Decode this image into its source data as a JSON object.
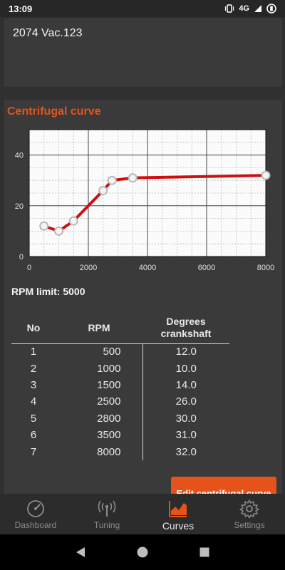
{
  "status_bar": {
    "time": "13:09",
    "network": "4G"
  },
  "header_card": {
    "vacuum_label": "2074 Vac.123"
  },
  "curve_card": {
    "title": "Centrifugal curve",
    "rpm_limit": "RPM limit: 5000"
  },
  "table": {
    "headers": {
      "no": "No",
      "rpm": "RPM",
      "degrees_line1": "Degrees",
      "degrees_line2": "crankshaft"
    },
    "rows": [
      {
        "no": "1",
        "rpm": "500",
        "deg": "12.0"
      },
      {
        "no": "2",
        "rpm": "1000",
        "deg": "10.0"
      },
      {
        "no": "3",
        "rpm": "1500",
        "deg": "14.0"
      },
      {
        "no": "4",
        "rpm": "2500",
        "deg": "26.0"
      },
      {
        "no": "5",
        "rpm": "2800",
        "deg": "30.0"
      },
      {
        "no": "6",
        "rpm": "3500",
        "deg": "31.0"
      },
      {
        "no": "7",
        "rpm": "8000",
        "deg": "32.0"
      }
    ]
  },
  "edit_button": {
    "label": "Edit centrifugal curve"
  },
  "nav": {
    "items": [
      {
        "label": "Dashboard",
        "icon": "gauge-icon"
      },
      {
        "label": "Tuning",
        "icon": "tuning-icon"
      },
      {
        "label": "Curves",
        "icon": "curves-icon"
      },
      {
        "label": "Settings",
        "icon": "gear-icon"
      }
    ],
    "active": "Curves"
  },
  "colors": {
    "accent": "#e5531a",
    "line": "#cc1010"
  },
  "chart_data": {
    "type": "line",
    "title": "",
    "xlabel": "",
    "ylabel": "",
    "xlim": [
      0,
      8000
    ],
    "ylim": [
      0,
      50
    ],
    "xticks": [
      0,
      2000,
      4000,
      6000,
      8000
    ],
    "yticks": [
      0,
      20,
      40
    ],
    "grid": true,
    "series": [
      {
        "x": [
          500,
          1000,
          1500,
          2500,
          2800,
          3500,
          8000
        ],
        "y": [
          12,
          10,
          14,
          26,
          30,
          31,
          32
        ]
      }
    ]
  }
}
